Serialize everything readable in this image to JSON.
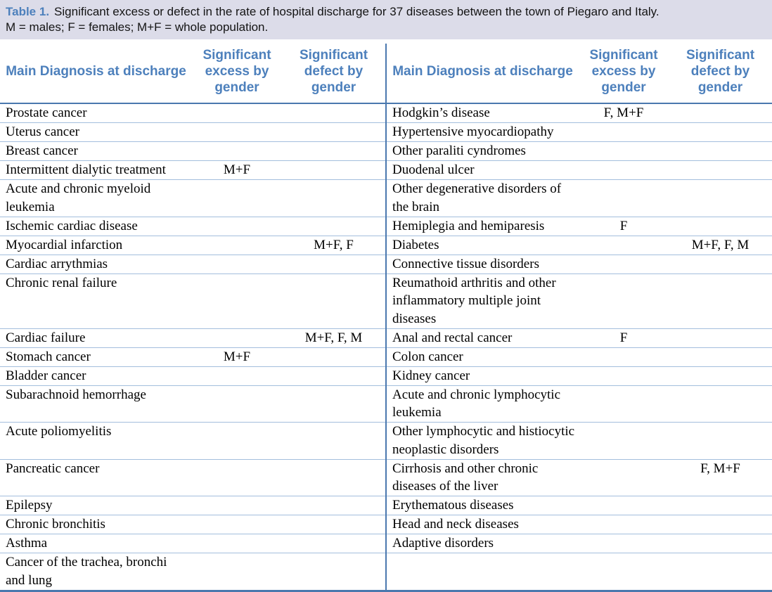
{
  "caption": {
    "label": "Table 1.",
    "text": "Significant excess or defect in the rate of hospital discharge for 37 diseases between the town of Piegaro and Italy.",
    "legend": "M = males; F = females; M+F = whole population."
  },
  "columns": {
    "diagnosis": "Main Diagnosis at discharge",
    "excess": "Significant excess by gender",
    "defect": "Significant defect by gender"
  },
  "colors": {
    "caption_bg": "#dcdce9",
    "header_blue": "#4d80bc",
    "heavy_line": "#4a78ae",
    "light_line": "#a3bedd"
  },
  "rows": [
    {
      "left": {
        "d": "Prostate cancer",
        "e": "",
        "f": ""
      },
      "right": {
        "d": "Hodgkin’s disease",
        "e": "F, M+F",
        "f": ""
      }
    },
    {
      "left": {
        "d": "Uterus cancer",
        "e": "",
        "f": ""
      },
      "right": {
        "d": "Hypertensive myocardiopathy",
        "e": "",
        "f": ""
      }
    },
    {
      "left": {
        "d": "Breast cancer",
        "e": "",
        "f": ""
      },
      "right": {
        "d": "Other paraliti cyndromes",
        "e": "",
        "f": ""
      }
    },
    {
      "left": {
        "d": "Intermittent dialytic treatment",
        "e": "M+F",
        "f": ""
      },
      "right": {
        "d": "Duodenal ulcer",
        "e": "",
        "f": ""
      }
    },
    {
      "left": {
        "d": "Acute and chronic myeloid leukemia",
        "e": "",
        "f": ""
      },
      "right": {
        "d": "Other degenerative disorders of the brain",
        "e": "",
        "f": ""
      }
    },
    {
      "left": {
        "d": "Ischemic cardiac disease",
        "e": "",
        "f": ""
      },
      "right": {
        "d": "Hemiplegia and hemiparesis",
        "e": "F",
        "f": ""
      }
    },
    {
      "left": {
        "d": "Myocardial infarction",
        "e": "",
        "f": "M+F, F"
      },
      "right": {
        "d": "Diabetes",
        "e": "",
        "f": "M+F, F, M"
      }
    },
    {
      "left": {
        "d": "Cardiac arrythmias",
        "e": "",
        "f": ""
      },
      "right": {
        "d": "Connective tissue disorders",
        "e": "",
        "f": ""
      }
    },
    {
      "left": {
        "d": "Chronic renal failure",
        "e": "",
        "f": ""
      },
      "right": {
        "d": "Reumathoid arthritis and other inflammatory  multiple joint diseases",
        "e": "",
        "f": ""
      }
    },
    {
      "left": {
        "d": "Cardiac failure",
        "e": "",
        "f": "M+F, F, M"
      },
      "right": {
        "d": "Anal and rectal cancer",
        "e": "F",
        "f": ""
      }
    },
    {
      "left": {
        "d": "Stomach cancer",
        "e": "M+F",
        "f": ""
      },
      "right": {
        "d": "Colon cancer",
        "e": "",
        "f": ""
      }
    },
    {
      "left": {
        "d": "Bladder cancer",
        "e": "",
        "f": ""
      },
      "right": {
        "d": "Kidney cancer",
        "e": "",
        "f": ""
      }
    },
    {
      "left": {
        "d": "Subarachnoid hemorrhage",
        "e": "",
        "f": ""
      },
      "right": {
        "d": "Acute and chronic lymphocytic leukemia",
        "e": "",
        "f": ""
      }
    },
    {
      "left": {
        "d": "Acute poliomyelitis",
        "e": "",
        "f": ""
      },
      "right": {
        "d": "Other lymphocytic and histiocytic neoplastic disorders",
        "e": "",
        "f": ""
      }
    },
    {
      "left": {
        "d": "Pancreatic cancer",
        "e": "",
        "f": ""
      },
      "right": {
        "d": "Cirrhosis and other chronic diseases of the liver",
        "e": "",
        "f": "F, M+F"
      }
    },
    {
      "left": {
        "d": "Epilepsy",
        "e": "",
        "f": ""
      },
      "right": {
        "d": "Erythematous diseases",
        "e": "",
        "f": ""
      }
    },
    {
      "left": {
        "d": "Chronic bronchitis",
        "e": "",
        "f": ""
      },
      "right": {
        "d": "Head and neck diseases",
        "e": "",
        "f": ""
      }
    },
    {
      "left": {
        "d": "Asthma",
        "e": "",
        "f": ""
      },
      "right": {
        "d": "Adaptive disorders",
        "e": "",
        "f": ""
      }
    },
    {
      "left": {
        "d": "Cancer of the trachea, bronchi and lung",
        "e": "",
        "f": ""
      },
      "right": {
        "d": "",
        "e": "",
        "f": ""
      }
    }
  ]
}
